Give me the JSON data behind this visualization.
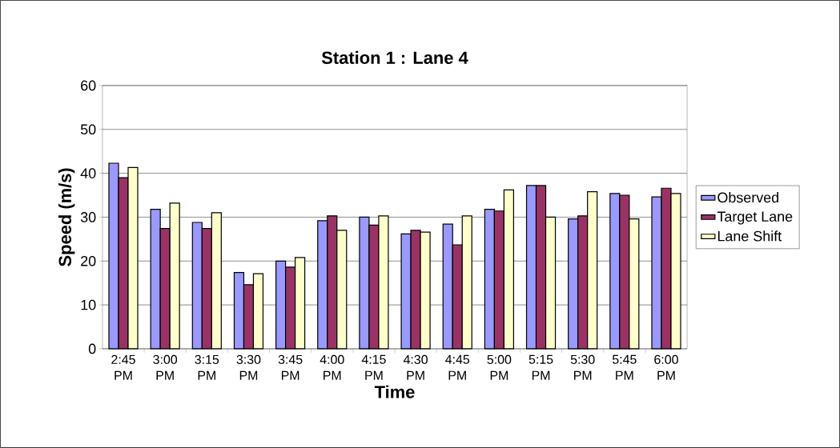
{
  "chart_data": {
    "type": "bar",
    "title": "Station 1 : Lane 4",
    "xlabel": "Time",
    "ylabel": "Speed (m/s)",
    "categories": [
      "2:45 PM",
      "3:00 PM",
      "3:15 PM",
      "3:30 PM",
      "3:45 PM",
      "4:00 PM",
      "4:15 PM",
      "4:30 PM",
      "4:45 PM",
      "5:00 PM",
      "5:15 PM",
      "5:30 PM",
      "5:45 PM",
      "6:00 PM"
    ],
    "series": [
      {
        "name": "Observed",
        "color": "#9999ff",
        "values": [
          42.3,
          31.8,
          28.8,
          17.4,
          20,
          29.2,
          30,
          26.2,
          28.4,
          31.8,
          37.2,
          29.6,
          35.4,
          34.6
        ]
      },
      {
        "name": "Target Lane",
        "color": "#993366",
        "values": [
          39,
          27.4,
          27.4,
          14.6,
          18.6,
          30.3,
          28.2,
          27,
          23.7,
          31.4,
          37.2,
          30.3,
          35,
          36.6
        ]
      },
      {
        "name": "Lane Shift",
        "color": "#ffffcc",
        "values": [
          41.3,
          33.2,
          31,
          17.1,
          20.8,
          27,
          30.3,
          26.6,
          30.3,
          36.2,
          30,
          35.8,
          29.6,
          35.4
        ]
      }
    ],
    "ylim": [
      0,
      60
    ],
    "yticks": [
      0,
      10,
      20,
      30,
      40,
      50,
      60
    ],
    "grid": "y",
    "legend": "right"
  }
}
